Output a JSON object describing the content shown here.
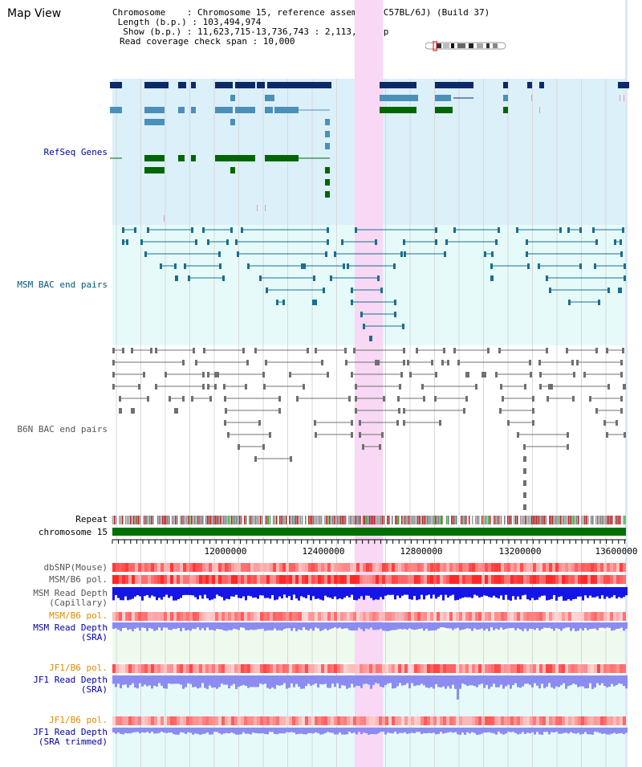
{
  "view_title": "Map View",
  "header": {
    "line1": "Chromosome    : Chromosome 15, reference assembly (C57BL/6J) (Build 37)",
    "line2": " Length (b.p.) : 103,494,974",
    "line3": "  Show (b.p.) : 11,623,715-13,736,743 : 2,113,029 bp",
    "line4": "Read coverage check span : 10,000"
  },
  "tracks": {
    "refseq": "RefSeq Genes",
    "msm_bac": "MSM BAC end pairs",
    "b6n_bac": "B6N BAC end pairs",
    "repeat": "Repeat",
    "chromosome": "chromosome 15",
    "dbsnp": "dbSNP(Mouse)",
    "msm_b6_pol_1": "MSM/B6 pol.",
    "msm_depth_cap_1": "MSM Read Depth",
    "msm_depth_cap_2": "(Capillary)",
    "msm_b6_pol_2": "MSM/B6 pol.",
    "msm_depth_sra_1": "MSM Read Depth",
    "msm_depth_sra_2": "(SRA)",
    "jf1_b6_pol_1": "JF1/B6 pol.",
    "jf1_depth_sra_1": "JF1 Read Depth",
    "jf1_depth_sra_2": "(SRA)",
    "jf1_b6_pol_2": "JF1/B6 pol.",
    "jf1_depth_trim_1": "JF1 Read Depth",
    "jf1_depth_trim_2": "(SRA trimmed)"
  },
  "axis_ticks": [
    "12000000",
    "12400000",
    "12800000",
    "13200000",
    "13600000"
  ],
  "colors": {
    "refseq_bg": "#dcf0fa",
    "bac_bg": "#e6fafa",
    "highlight": "#f8d8f4",
    "refseq_dark": "#0b2a66",
    "refseq_light": "#4a90b8",
    "refseq_green": "#006600",
    "msm_pair": "#1a6e90",
    "b6n_pair": "#707070",
    "chrom_bar": "#007000",
    "depth_cap": "#1515e6",
    "depth_sra": "#8c8cf0",
    "snp": "#e84848"
  }
}
